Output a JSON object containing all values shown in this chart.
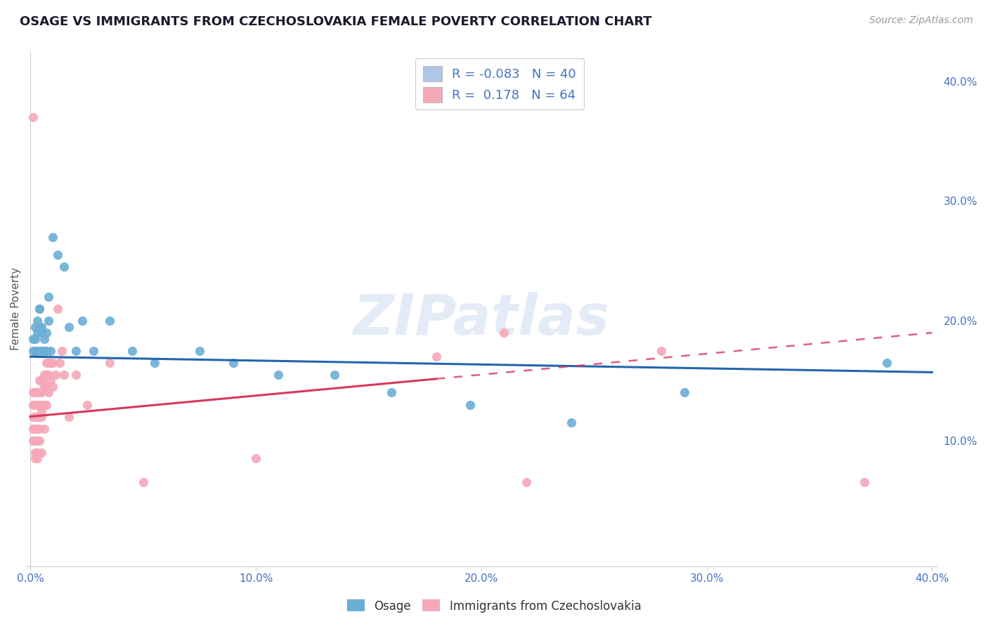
{
  "title": "OSAGE VS IMMIGRANTS FROM CZECHOSLOVAKIA FEMALE POVERTY CORRELATION CHART",
  "source_text": "Source: ZipAtlas.com",
  "ylabel": "Female Poverty",
  "xlim": [
    -0.002,
    0.402
  ],
  "ylim": [
    -0.005,
    0.425
  ],
  "xticks": [
    0.0,
    0.1,
    0.2,
    0.3,
    0.4
  ],
  "xtick_labels": [
    "0.0%",
    "10.0%",
    "20.0%",
    "30.0%",
    "40.0%"
  ],
  "ytick_positions": [
    0.1,
    0.2,
    0.3,
    0.4
  ],
  "ytick_labels": [
    "10.0%",
    "20.0%",
    "30.0%",
    "40.0%"
  ],
  "legend_entries": [
    {
      "label": "R = -0.083   N = 40",
      "color": "#aec6e8"
    },
    {
      "label": "R =  0.178   N = 64",
      "color": "#f4a8b8"
    }
  ],
  "osage_color": "#6baed6",
  "czech_color": "#f4a8b8",
  "osage_line_color": "#2166ac",
  "czech_line_color": "#d6385e",
  "czech_line_solid_end": 0.18,
  "czech_line_dash_end": 0.4,
  "watermark": "ZIPatlas",
  "background_color": "#ffffff",
  "grid_color": "#cccccc",
  "title_color": "#1a1a2e",
  "tick_color": "#4472c4",
  "osage_x": [
    0.001,
    0.001,
    0.002,
    0.002,
    0.002,
    0.003,
    0.003,
    0.003,
    0.004,
    0.004,
    0.004,
    0.005,
    0.005,
    0.005,
    0.006,
    0.006,
    0.007,
    0.007,
    0.008,
    0.008,
    0.009,
    0.01,
    0.012,
    0.015,
    0.017,
    0.02,
    0.023,
    0.028,
    0.035,
    0.045,
    0.055,
    0.075,
    0.09,
    0.11,
    0.135,
    0.16,
    0.195,
    0.24,
    0.29,
    0.38
  ],
  "osage_y": [
    0.175,
    0.185,
    0.175,
    0.185,
    0.195,
    0.2,
    0.19,
    0.175,
    0.21,
    0.195,
    0.21,
    0.195,
    0.175,
    0.19,
    0.175,
    0.185,
    0.19,
    0.175,
    0.22,
    0.2,
    0.175,
    0.27,
    0.255,
    0.245,
    0.195,
    0.175,
    0.2,
    0.175,
    0.2,
    0.175,
    0.165,
    0.175,
    0.165,
    0.155,
    0.155,
    0.14,
    0.13,
    0.115,
    0.14,
    0.165
  ],
  "czech_x": [
    0.001,
    0.001,
    0.001,
    0.001,
    0.001,
    0.001,
    0.002,
    0.002,
    0.002,
    0.002,
    0.002,
    0.002,
    0.002,
    0.003,
    0.003,
    0.003,
    0.003,
    0.003,
    0.003,
    0.003,
    0.003,
    0.004,
    0.004,
    0.004,
    0.004,
    0.004,
    0.004,
    0.005,
    0.005,
    0.005,
    0.005,
    0.005,
    0.005,
    0.006,
    0.006,
    0.006,
    0.006,
    0.007,
    0.007,
    0.007,
    0.007,
    0.008,
    0.008,
    0.008,
    0.009,
    0.009,
    0.01,
    0.01,
    0.011,
    0.012,
    0.013,
    0.014,
    0.015,
    0.017,
    0.02,
    0.025,
    0.035,
    0.05,
    0.1,
    0.18,
    0.21,
    0.22,
    0.28,
    0.37
  ],
  "czech_y": [
    0.37,
    0.14,
    0.13,
    0.12,
    0.11,
    0.1,
    0.13,
    0.14,
    0.12,
    0.11,
    0.1,
    0.09,
    0.085,
    0.13,
    0.14,
    0.13,
    0.12,
    0.11,
    0.1,
    0.09,
    0.085,
    0.15,
    0.14,
    0.13,
    0.12,
    0.11,
    0.1,
    0.15,
    0.14,
    0.13,
    0.125,
    0.12,
    0.09,
    0.155,
    0.145,
    0.13,
    0.11,
    0.165,
    0.155,
    0.145,
    0.13,
    0.165,
    0.155,
    0.14,
    0.165,
    0.15,
    0.165,
    0.145,
    0.155,
    0.21,
    0.165,
    0.175,
    0.155,
    0.12,
    0.155,
    0.13,
    0.165,
    0.065,
    0.085,
    0.17,
    0.19,
    0.065,
    0.175,
    0.065
  ]
}
